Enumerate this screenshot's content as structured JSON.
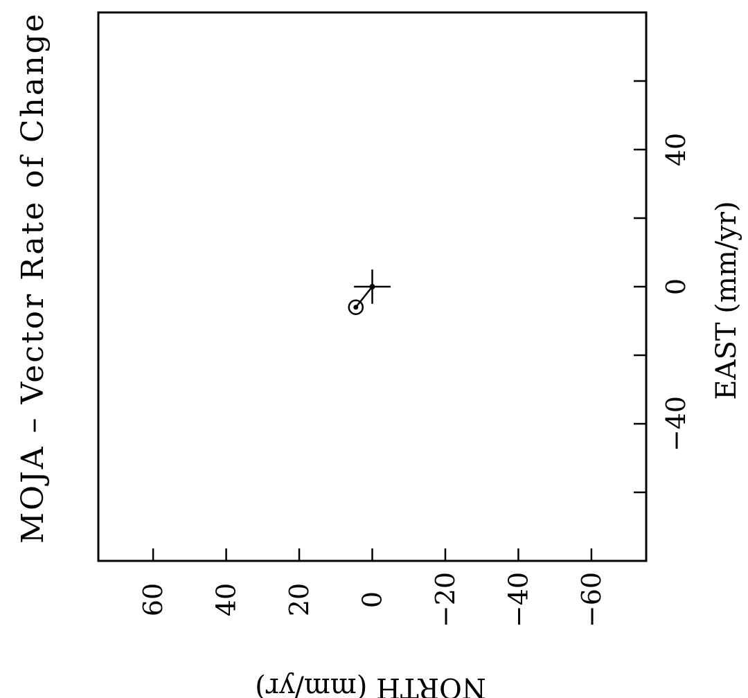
{
  "chart_data": {
    "type": "scatter",
    "title": "MOJA  –  Vector Rate of Change",
    "xlabel": "EAST (mm/yr)",
    "ylabel": "NORTH (mm/yr)",
    "xlim": [
      -80,
      80
    ],
    "ylim": [
      -75,
      75
    ],
    "x_ticks_major": [
      -40,
      0,
      40
    ],
    "x_ticks_minor": [
      -60,
      -20,
      20,
      60
    ],
    "y_ticks": [
      60,
      40,
      20,
      0,
      -20,
      -40,
      -60
    ],
    "x_tick_labels": [
      "−40",
      "0",
      "40"
    ],
    "y_tick_labels": [
      "60",
      "40",
      "20",
      "0",
      "−20",
      "−40",
      "−60"
    ],
    "grid": false,
    "orientation": "rotated 90° counter-clockwise on page",
    "vector": {
      "origin": {
        "east": 0,
        "north": 0
      },
      "tip": {
        "east": -6,
        "north": 4.5
      },
      "error_bar_half_length": {
        "east": 5,
        "north": 5
      }
    }
  }
}
